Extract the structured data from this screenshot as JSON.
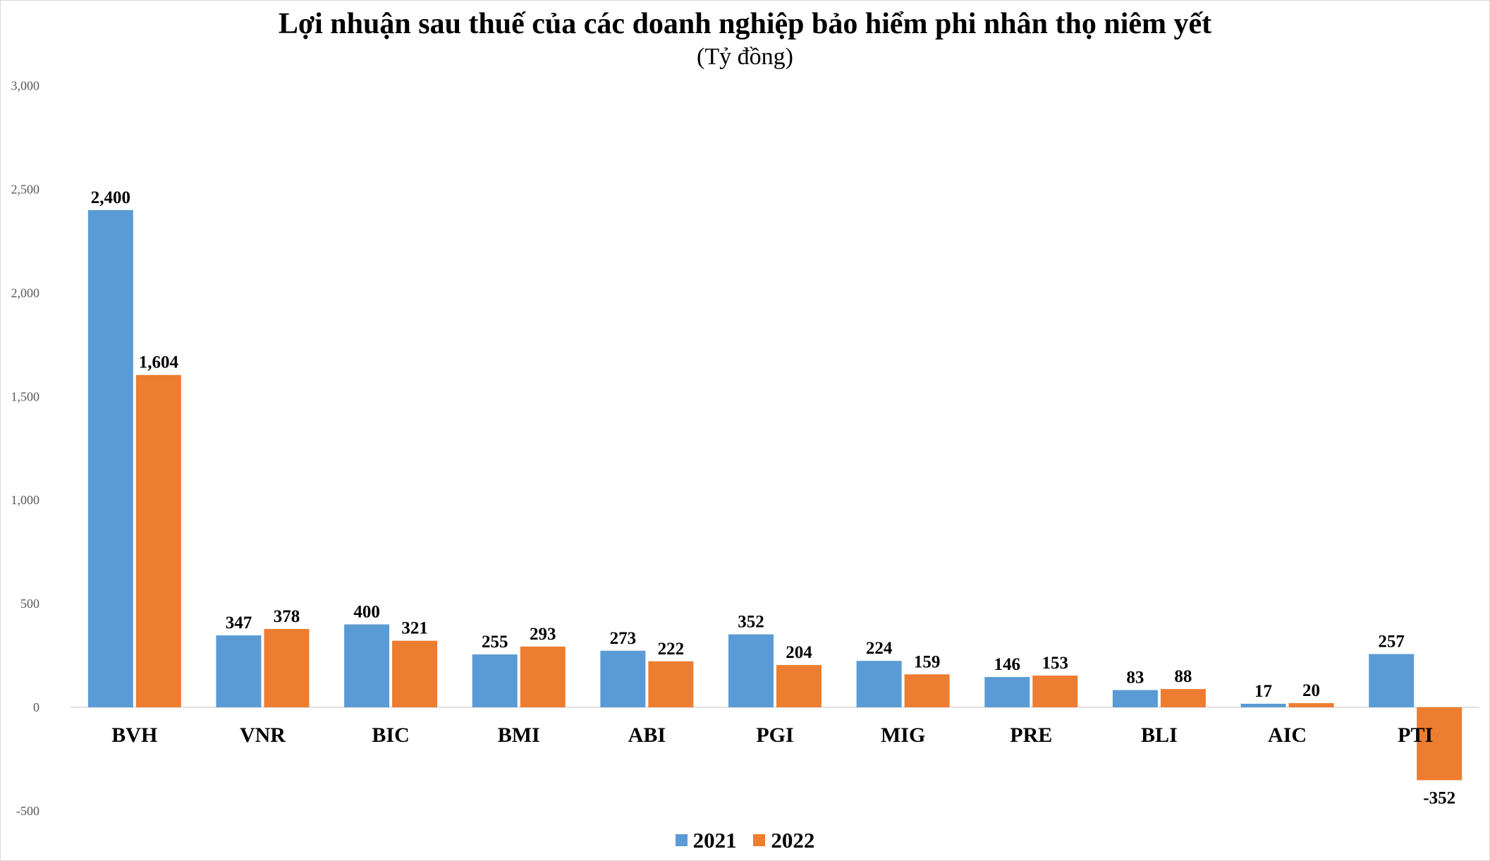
{
  "chart_data": {
    "type": "bar",
    "title": "Lợi nhuận sau thuế của các doanh nghiệp bảo hiểm phi nhân thọ niêm yết",
    "subtitle": "(Tỷ đồng)",
    "xlabel": "",
    "ylabel": "",
    "ylim": [
      -500,
      3000
    ],
    "yticks": [
      -500,
      0,
      500,
      1000,
      1500,
      2000,
      2500,
      3000
    ],
    "ytick_labels": [
      "-500",
      "0",
      "500",
      "1,000",
      "1,500",
      "2,000",
      "2,500",
      "3,000"
    ],
    "categories": [
      "BVH",
      "VNR",
      "BIC",
      "BMI",
      "ABI",
      "PGI",
      "MIG",
      "PRE",
      "BLI",
      "AIC",
      "PTI"
    ],
    "series": [
      {
        "name": "2021",
        "color": "#5b9bd5",
        "values": [
          2400,
          347,
          400,
          255,
          273,
          352,
          224,
          146,
          83,
          17,
          257
        ],
        "labels": [
          "2,400",
          "347",
          "400",
          "255",
          "273",
          "352",
          "224",
          "146",
          "83",
          "17",
          "257"
        ]
      },
      {
        "name": "2022",
        "color": "#ed7d31",
        "values": [
          1604,
          378,
          321,
          293,
          222,
          204,
          159,
          153,
          88,
          20,
          -352
        ],
        "labels": [
          "1,604",
          "378",
          "321",
          "293",
          "222",
          "204",
          "159",
          "153",
          "88",
          "20",
          "-352"
        ]
      }
    ],
    "grid": false,
    "legend_position": "bottom"
  }
}
